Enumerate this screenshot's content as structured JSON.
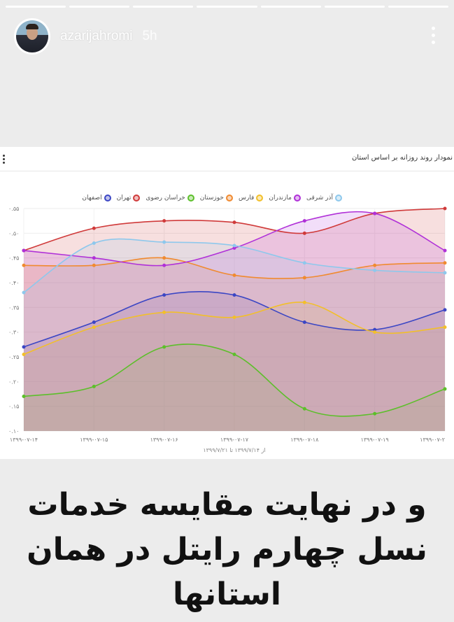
{
  "story": {
    "segments": 7,
    "username": "azarijahromi",
    "time": "5h"
  },
  "card": {
    "title": "نمودار روند روزانه بر اساس استان"
  },
  "chart_data": {
    "type": "area",
    "x": [
      "۱۳۹۹-۰۷-۱۴",
      "۱۳۹۹-۰۷-۱۵",
      "۱۳۹۹-۰۷-۱۶",
      "۱۳۹۹-۰۷-۱۷",
      "۱۳۹۹-۰۷-۱۸",
      "۱۳۹۹-۰۷-۱۹",
      "۱۳۹۹-۰۷-۲"
    ],
    "xlabel": "از ۱۳۹۹/۷/۱۴ تا ۱۳۹۹/۷/۲۱",
    "ylim": [
      0.1,
      0.55
    ],
    "yticks": [
      "۰.۵۵",
      "۰.۵۰",
      "۰.۴۵",
      "۰.۴۰",
      "۰.۳۵",
      "۰.۳۰",
      "۰.۲۵",
      "۰.۲۰",
      "۰.۱۵",
      "۰.۱۰"
    ],
    "ytick_values": [
      0.55,
      0.5,
      0.45,
      0.4,
      0.35,
      0.3,
      0.25,
      0.2,
      0.15,
      0.1
    ],
    "legend_position": "top",
    "series": [
      {
        "name": "اصفهان",
        "color": "#3b46c4",
        "values": [
          0.27,
          0.32,
          0.375,
          0.375,
          0.32,
          0.305,
          0.345
        ]
      },
      {
        "name": "تهران",
        "color": "#d03a3a",
        "values": [
          0.465,
          0.51,
          0.525,
          0.522,
          0.5,
          0.54,
          0.55
        ]
      },
      {
        "name": "خراسان رضوی",
        "color": "#5cbf2a",
        "values": [
          0.17,
          0.19,
          0.27,
          0.255,
          0.145,
          0.135,
          0.185
        ]
      },
      {
        "name": "خوزستان",
        "color": "#f08a30",
        "values": [
          0.435,
          0.435,
          0.45,
          0.415,
          0.41,
          0.435,
          0.44
        ]
      },
      {
        "name": "فارس",
        "color": "#f2bf2a",
        "values": [
          0.255,
          0.31,
          0.34,
          0.33,
          0.36,
          0.3,
          0.31
        ]
      },
      {
        "name": "مازندران",
        "color": "#b030d8",
        "values": [
          0.465,
          0.45,
          0.435,
          0.47,
          0.525,
          0.54,
          0.465
        ]
      },
      {
        "name": "آذر شرقی",
        "color": "#8ec8ec",
        "values": [
          0.38,
          0.48,
          0.482,
          0.475,
          0.44,
          0.425,
          0.42
        ]
      }
    ]
  },
  "caption": "و در نهایت مقایسه خدمات نسل چهارم رایتل در همان استانها"
}
